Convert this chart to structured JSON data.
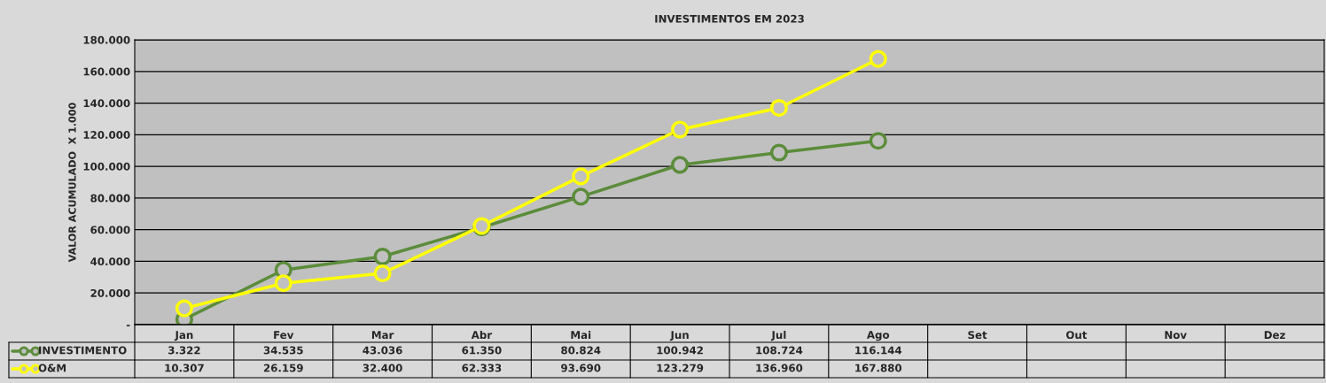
{
  "chart_data": {
    "type": "line",
    "title": "INVESTIMENTOS EM 2023",
    "ylabel": "VALOR ACUMULADO  X 1.000",
    "categories": [
      "Jan",
      "Fev",
      "Mar",
      "Abr",
      "Mai",
      "Jun",
      "Jul",
      "Ago",
      "Set",
      "Out",
      "Nov",
      "Dez"
    ],
    "series": [
      {
        "name": "INVESTIMENTO",
        "color": "#5b8c3a",
        "values": [
          3322,
          34535,
          43036,
          61350,
          80824,
          100942,
          108724,
          116144,
          null,
          null,
          null,
          null
        ],
        "value_labels": [
          "3.322",
          "34.535",
          "43.036",
          "61.350",
          "80.824",
          "100.942",
          "108.724",
          "116.144",
          null,
          null,
          null,
          null
        ]
      },
      {
        "name": "O&M",
        "color": "#ffff00",
        "values": [
          10307,
          26159,
          32400,
          62333,
          93690,
          123279,
          136960,
          167880,
          null,
          null,
          null,
          null
        ],
        "value_labels": [
          "10.307",
          "26.159",
          "32.400",
          "62.333",
          "93.690",
          "123.279",
          "136.960",
          "167.880",
          null,
          null,
          null,
          null
        ]
      }
    ],
    "ylim": [
      0,
      180000
    ],
    "yticks": [
      {
        "value": 0,
        "label": "-"
      },
      {
        "value": 20000,
        "label": "20.000"
      },
      {
        "value": 40000,
        "label": "40.000"
      },
      {
        "value": 60000,
        "label": "60.000"
      },
      {
        "value": 80000,
        "label": "80.000"
      },
      {
        "value": 100000,
        "label": "100.000"
      },
      {
        "value": 120000,
        "label": "120.000"
      },
      {
        "value": 140000,
        "label": "140.000"
      },
      {
        "value": 160000,
        "label": "160.000"
      },
      {
        "value": 180000,
        "label": "180.000"
      }
    ],
    "grid": "y",
    "legend": "bottom left",
    "marker": "circle",
    "line_style": "solid"
  }
}
